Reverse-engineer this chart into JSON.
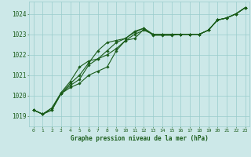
{
  "background_color": "#cce8e8",
  "grid_color": "#99cccc",
  "line_color": "#1a5c1a",
  "marker_color": "#1a5c1a",
  "title": "Graphe pression niveau de la mer (hPa)",
  "title_color": "#1a5c1a",
  "xlim": [
    -0.5,
    23.5
  ],
  "ylim": [
    1018.5,
    1024.6
  ],
  "yticks": [
    1019,
    1020,
    1021,
    1022,
    1023,
    1024
  ],
  "xticks": [
    0,
    1,
    2,
    3,
    4,
    5,
    6,
    7,
    8,
    9,
    10,
    11,
    12,
    13,
    14,
    15,
    16,
    17,
    18,
    19,
    20,
    21,
    22,
    23
  ],
  "series": [
    [
      1019.3,
      1019.1,
      1019.3,
      1020.1,
      1020.4,
      1020.6,
      1021.0,
      1021.2,
      1021.4,
      1022.2,
      1022.7,
      1023.0,
      1023.2,
      1023.0,
      1023.0,
      1023.0,
      1023.0,
      1023.0,
      1023.0,
      1023.2,
      1023.7,
      1023.8,
      1024.0,
      1024.3
    ],
    [
      1019.3,
      1019.1,
      1019.3,
      1020.1,
      1020.5,
      1020.8,
      1021.5,
      1021.8,
      1022.2,
      1022.6,
      1022.8,
      1023.1,
      1023.3,
      1022.95,
      1022.95,
      1022.95,
      1023.0,
      1023.0,
      1023.0,
      1023.2,
      1023.7,
      1023.8,
      1024.0,
      1024.3
    ],
    [
      1019.3,
      1019.1,
      1019.4,
      1020.1,
      1020.6,
      1021.0,
      1021.6,
      1022.2,
      1022.6,
      1022.7,
      1022.8,
      1023.15,
      1023.3,
      1023.0,
      1023.0,
      1023.0,
      1023.0,
      1023.0,
      1023.0,
      1023.2,
      1023.7,
      1023.8,
      1024.0,
      1024.3
    ],
    [
      1019.3,
      1019.1,
      1019.4,
      1020.15,
      1020.7,
      1021.4,
      1021.7,
      1021.8,
      1022.0,
      1022.3,
      1022.7,
      1022.8,
      1023.25,
      1023.0,
      1023.0,
      1023.0,
      1023.0,
      1023.0,
      1023.0,
      1023.2,
      1023.7,
      1023.8,
      1024.0,
      1024.3
    ]
  ]
}
